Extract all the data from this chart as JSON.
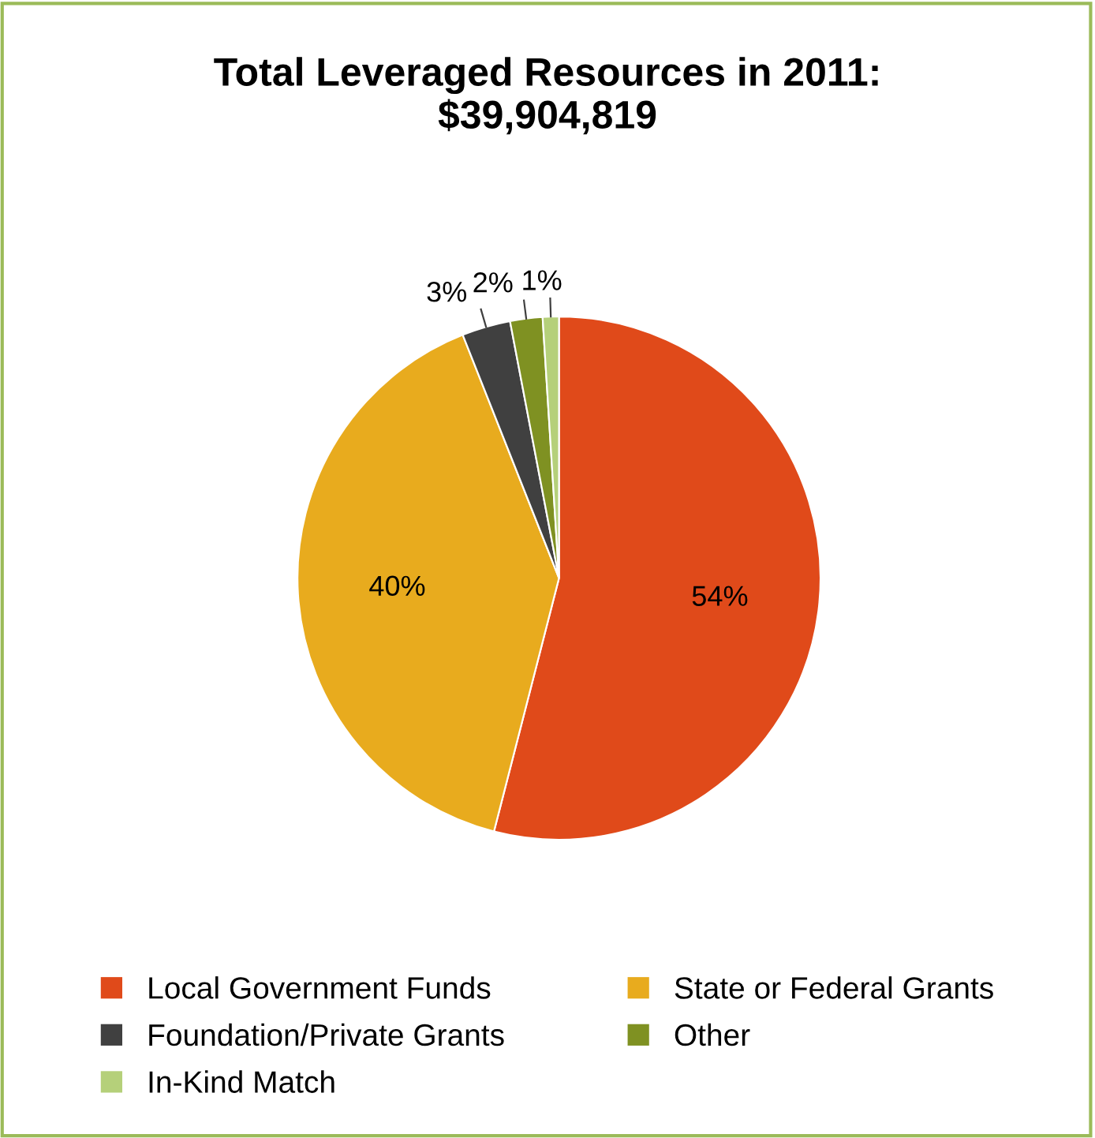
{
  "chart_data": {
    "type": "pie",
    "title": "Total Leveraged Resources in 2011:\n$39,904,819",
    "categories": [
      "Local Government Funds",
      "State or Federal Grants",
      "Foundation/Private Grants",
      "Other",
      "In-Kind Match"
    ],
    "values": [
      54,
      40,
      3,
      2,
      1
    ],
    "colors": [
      "#e04a1a",
      "#e8ab1e",
      "#404040",
      "#7f9122",
      "#b5d07a"
    ],
    "value_labels": [
      "54%",
      "40%",
      "3%",
      "2%",
      "1%"
    ],
    "legend": "bottom"
  }
}
